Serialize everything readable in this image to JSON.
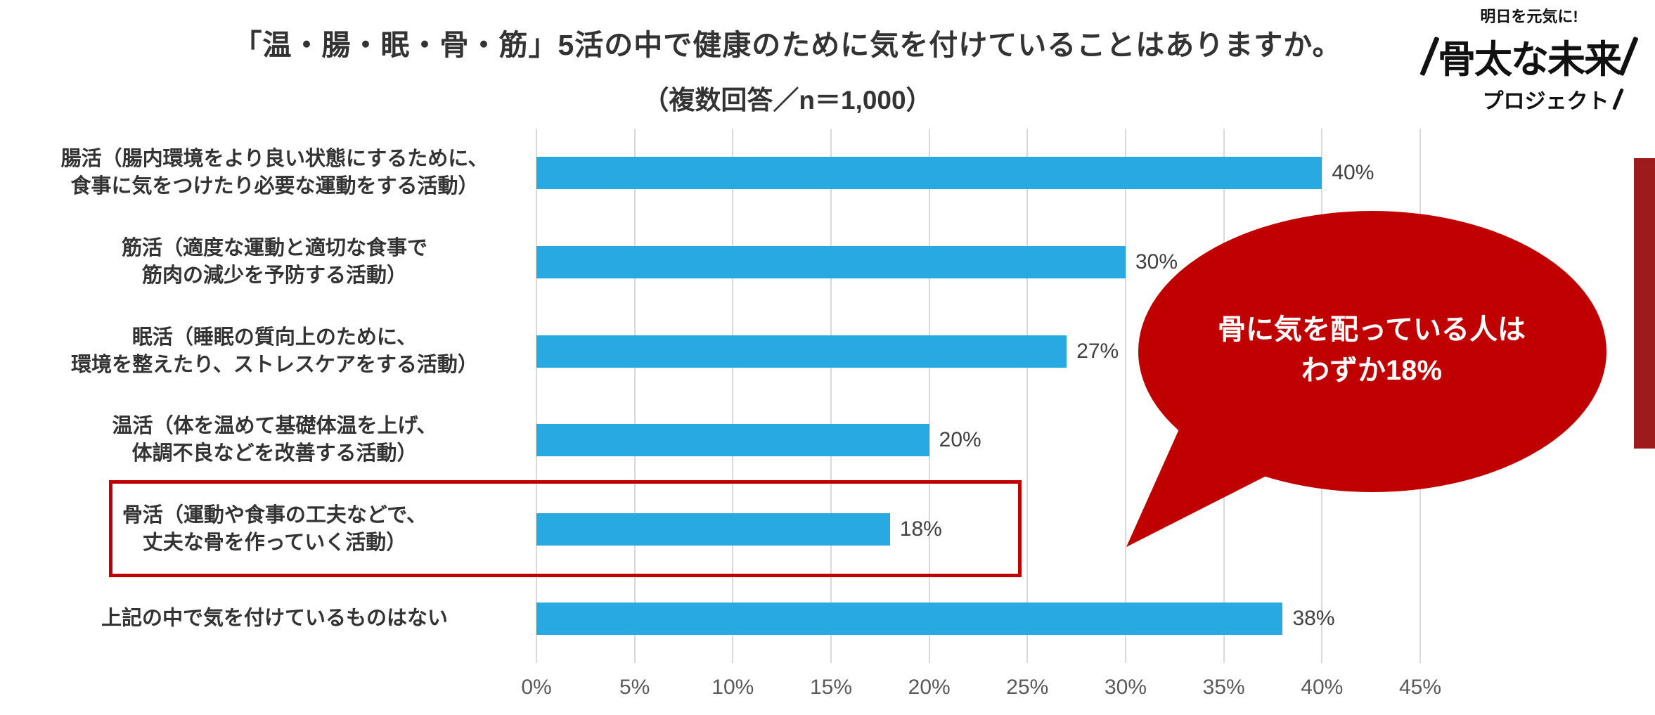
{
  "title": "「温・腸・眠・骨・筋」5活の中で健康のために気を付けていることはありますか。",
  "subtitle": "（複数回答／n＝1,000）",
  "logo": {
    "tagline": "明日を元気に!",
    "line1": "骨太な未来",
    "line2": "プロジェクト"
  },
  "annotation": {
    "line1": "骨に気を配っている人は",
    "line2": "わずか18%"
  },
  "colors": {
    "bar": "#29a9e1",
    "accent": "#c00000",
    "grid": "#d9d9d9",
    "side_strip": "#9e1b1b"
  },
  "chart_data": {
    "type": "bar",
    "orientation": "horizontal",
    "title": "「温・腸・眠・骨・筋」5活の中で健康のために気を付けていることはありますか。",
    "subtitle": "（複数回答／n＝1,000）",
    "categories": [
      "腸活（腸内環境をより良い状態にするために、\n食事に気をつけたり必要な運動をする活動）",
      "筋活（適度な運動と適切な食事で\n筋肉の減少を予防する活動）",
      "眠活（睡眠の質向上のために、\n環境を整えたり、ストレスケアをする活動）",
      "温活（体を温めて基礎体温を上げ、\n体調不良などを改善する活動）",
      "骨活（運動や食事の工夫などで、\n丈夫な骨を作っていく活動）",
      "上記の中で気を付けているものはない"
    ],
    "values": [
      40,
      30,
      27,
      20,
      18,
      38
    ],
    "value_labels": [
      "40%",
      "30%",
      "27%",
      "20%",
      "18%",
      "38%"
    ],
    "highlighted_category_index": 4,
    "x_ticks": [
      "0%",
      "5%",
      "10%",
      "15%",
      "20%",
      "25%",
      "30%",
      "35%",
      "40%",
      "45%"
    ],
    "xlim": [
      0,
      45
    ],
    "grid": true,
    "legend": false,
    "annotation": "骨に気を配っている人は わずか18%"
  }
}
